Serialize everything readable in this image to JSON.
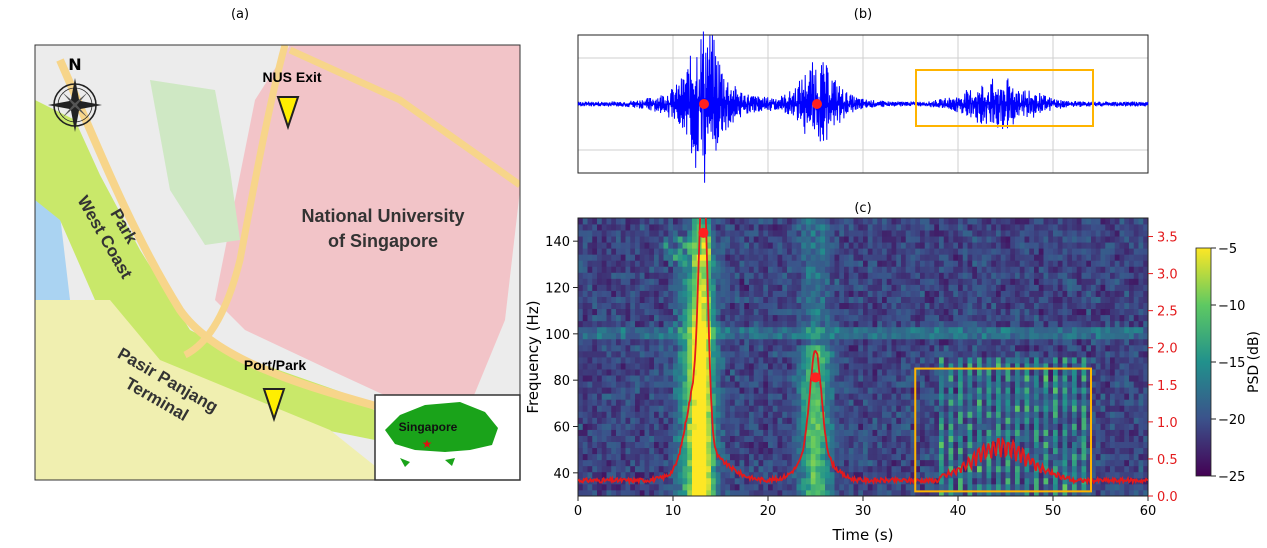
{
  "panels": {
    "a": {
      "label": "(a)",
      "north": "N",
      "places": {
        "nus_exit": "NUS Exit",
        "port_park": "Port/Park",
        "nus": [
          "National University",
          "of Singapore"
        ],
        "west_coast": [
          "West Coast",
          "Park"
        ],
        "pasir": [
          "Pasir Panjang",
          "Terminal"
        ],
        "singapore": "Singapore"
      },
      "colors": {
        "land": "#ececec",
        "campus": "#f2c4c8",
        "park": "#c9e86a",
        "sea": "#aad3f2",
        "terminal": "#f0efb0",
        "road": "#f7d58a",
        "marker": "#ffee00",
        "inset_land": "#1aa31a",
        "inset_star": "#e01010"
      }
    },
    "b": {
      "label": "(b)",
      "waveform_color": "#0000ff",
      "box_color": "#ffb400",
      "dot_color": "#ff2020"
    },
    "c": {
      "label": "(c)"
    }
  },
  "chart_data": {
    "type": "heatmap",
    "xlabel": "Time (s)",
    "ylabel": "Frequency (Hz)",
    "y2label": "",
    "colorbar_label": "PSD (dB)",
    "xlim": [
      0,
      60
    ],
    "ylim": [
      30,
      150
    ],
    "y2lim": [
      0,
      3.75
    ],
    "xticks": [
      0,
      10,
      20,
      30,
      40,
      50,
      60
    ],
    "yticks": [
      40,
      60,
      80,
      100,
      120,
      140
    ],
    "y2ticks": [
      "0.0",
      "0.5",
      "1.0",
      "1.5",
      "2.0",
      "2.5",
      "3.0",
      "3.5"
    ],
    "colorbar_ticks": [
      "-5",
      "-10",
      "-15",
      "-20",
      "-25"
    ],
    "colorbar_range": [
      -25,
      -5
    ],
    "peaks": [
      {
        "time": 13.2,
        "value": 3.55
      },
      {
        "time": 25.0,
        "value": 1.6
      }
    ],
    "highlight_box": {
      "time": [
        35.5,
        54
      ],
      "frequency": [
        32,
        85
      ]
    },
    "red_curve_color": "#e31a1c",
    "box_color": "#ffb400"
  }
}
